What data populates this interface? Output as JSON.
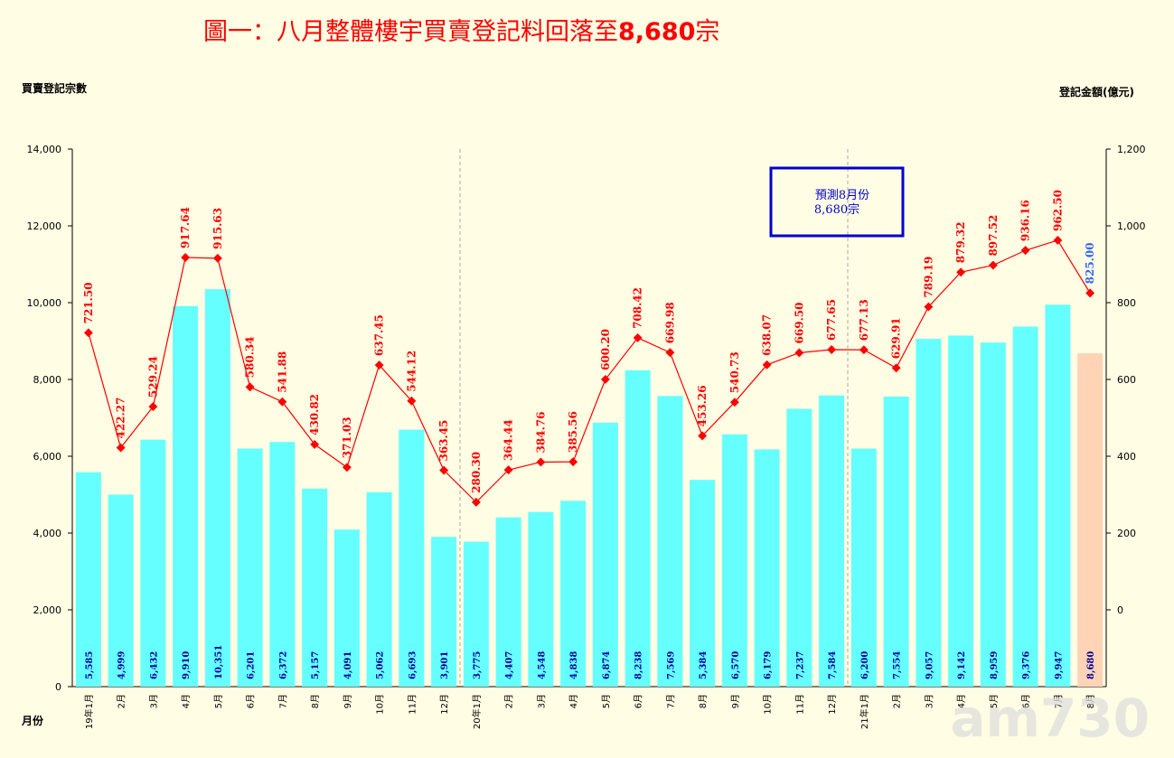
{
  "chart_data": {
    "type": "bar",
    "title": "圖一：八月整體樓宇買賣登記料回落至",
    "title_highlight": "8,680",
    "title_suffix": "宗",
    "ylabel_left": "買賣登記宗數",
    "ylabel_right": "登記金額(億元)",
    "xlabel": "月份",
    "ylim_left": [
      0,
      14000
    ],
    "yticks_left": [
      "0",
      "2,000",
      "4,000",
      "6,000",
      "8,000",
      "10,000",
      "12,000",
      "14,000"
    ],
    "ylim_right": [
      -200,
      1200
    ],
    "yticks_right": [
      "0",
      "200",
      "400",
      "600",
      "800",
      "1,000",
      "1,200"
    ],
    "categories": [
      "19年1月",
      "2月",
      "3月",
      "4月",
      "5月",
      "6月",
      "7月",
      "8月",
      "9月",
      "10月",
      "11月",
      "12月",
      "20年1月",
      "2月",
      "3月",
      "4月",
      "5月",
      "6月",
      "7月",
      "8月",
      "9月",
      "10月",
      "11月",
      "12月",
      "21年1月",
      "2月",
      "3月",
      "4月",
      "5月",
      "6月",
      "7月",
      "8月"
    ],
    "series": [
      {
        "type": "bar",
        "values": [
          5585,
          4999,
          6432,
          9910,
          10351,
          6201,
          6372,
          5157,
          4091,
          5062,
          6693,
          3901,
          3775,
          4407,
          4548,
          4838,
          6874,
          8238,
          7569,
          5384,
          6570,
          6179,
          7237,
          7584,
          6200,
          7554,
          9057,
          9142,
          8959,
          9376,
          9947,
          8680
        ],
        "labels": [
          "5,585",
          "4,999",
          "6,432",
          "9,910",
          "10,351",
          "6,201",
          "6,372",
          "5,157",
          "4,091",
          "5,062",
          "6,693",
          "3,901",
          "3,775",
          "4,407",
          "4,548",
          "4,838",
          "6,874",
          "8,238",
          "7,569",
          "5,384",
          "6,570",
          "6,179",
          "7,237",
          "7,584",
          "6,200",
          "7,554",
          "9,057",
          "9,142",
          "8,959",
          "9,376",
          "9,947",
          "8,680"
        ]
      },
      {
        "type": "line",
        "axis": "right",
        "values": [
          721.5,
          422.27,
          529.24,
          917.64,
          915.63,
          580.34,
          541.88,
          430.82,
          371.03,
          637.45,
          544.12,
          363.45,
          280.3,
          364.44,
          384.76,
          385.56,
          600.2,
          708.42,
          669.98,
          453.26,
          540.73,
          638.07,
          669.5,
          677.65,
          677.13,
          629.91,
          789.19,
          879.32,
          897.52,
          936.16,
          962.5,
          825.0
        ],
        "labels": [
          "721.50",
          "422.27",
          "529.24",
          "917.64",
          "915.63",
          "580.34",
          "541.88",
          "430.82",
          "371.03",
          "637.45",
          "544.12",
          "363.45",
          "280.30",
          "364.44",
          "384.76",
          "385.56",
          "600.20",
          "708.42",
          "669.98",
          "453.26",
          "540.73",
          "638.07",
          "669.50",
          "677.65",
          "677.13",
          "629.91",
          "789.19",
          "879.32",
          "897.52",
          "936.16",
          "962.50",
          "825.00"
        ]
      }
    ],
    "forecast_index": 31,
    "annotation": {
      "line1": "預測8月份",
      "line2": "8,680宗"
    },
    "year_dividers_after": [
      11,
      23
    ],
    "colors": {
      "bar": "#66FFFF",
      "bar_forecast": "#FFD3B6",
      "bar_label": "#000099",
      "line": "#FF0000",
      "line_label": "#FF0000",
      "forecast_line_label": "#3366FF",
      "annotation_border": "#0000CC",
      "annotation_text": "#0000CC",
      "divider": "#AAAAAA",
      "background": "#FFFDE3"
    },
    "watermark": "am730"
  }
}
